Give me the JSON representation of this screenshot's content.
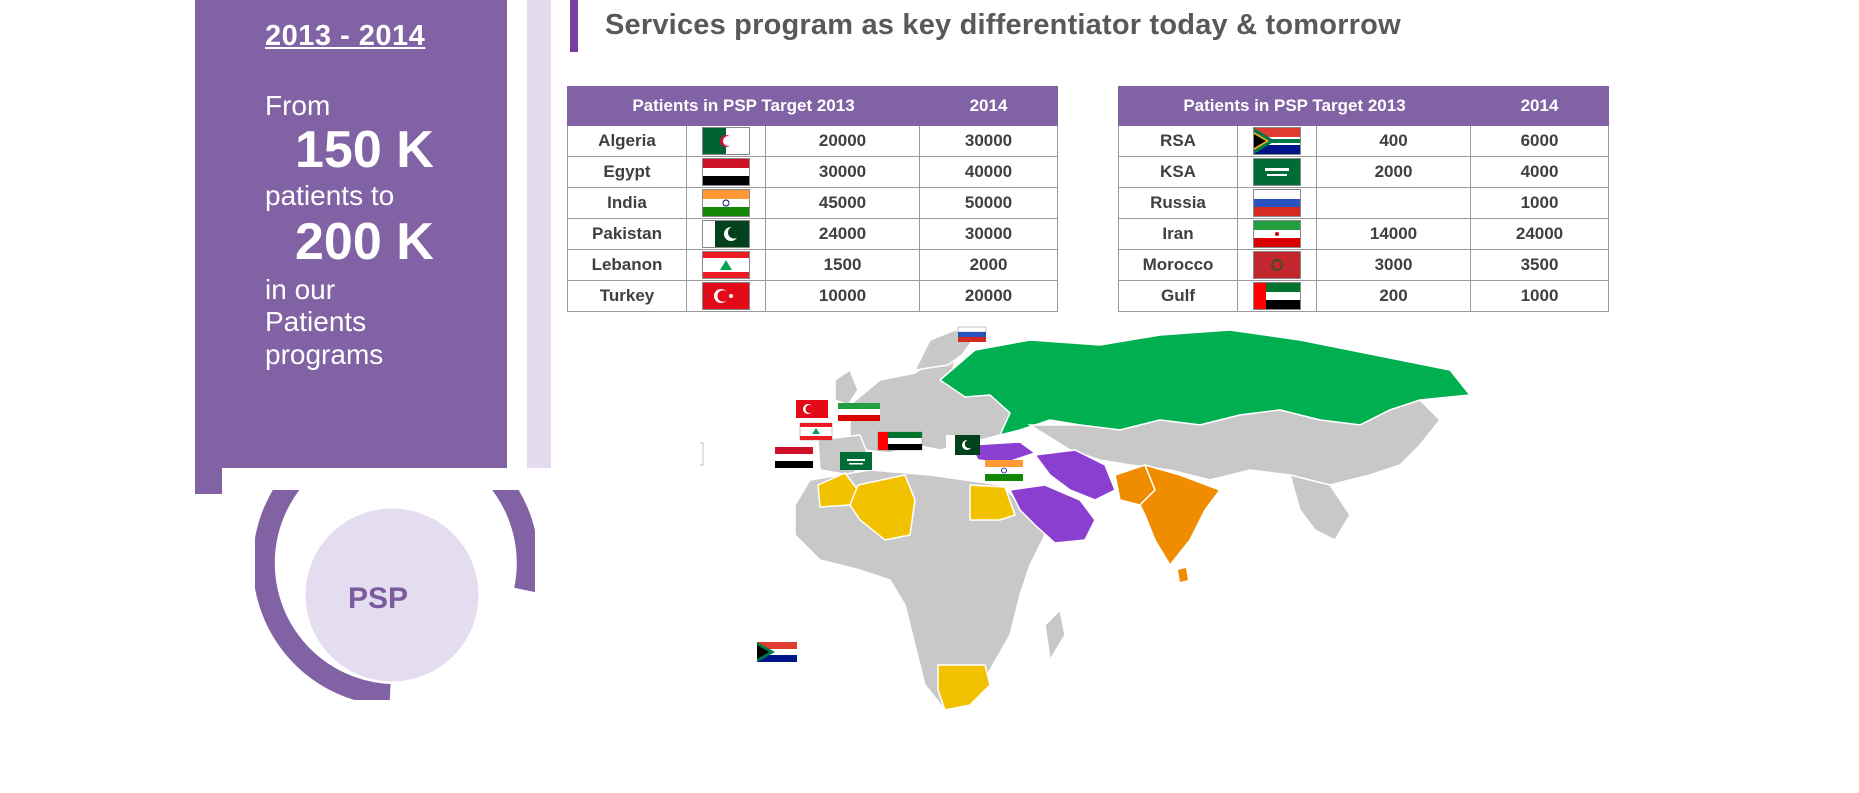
{
  "left_panel": {
    "period": "2013 - 2014",
    "line1": "From",
    "value1": "150 K",
    "line2": "patients to",
    "value2": "200 K",
    "line3": "in our",
    "line4": "Patients",
    "line5": "programs"
  },
  "title": "Services program as key differentiator today & tomorrow",
  "table1": {
    "headers": [
      "Patients in PSP  Target 2013",
      "2014"
    ],
    "rows": [
      {
        "country": "Algeria",
        "flag": "algeria-flag",
        "t2013": "20000",
        "t2014": "30000"
      },
      {
        "country": "Egypt",
        "flag": "egypt-flag",
        "t2013": "30000",
        "t2014": "40000"
      },
      {
        "country": "India",
        "flag": "india-flag",
        "t2013": "45000",
        "t2014": "50000"
      },
      {
        "country": "Pakistan",
        "flag": "pakistan-flag",
        "t2013": "24000",
        "t2014": "30000"
      },
      {
        "country": "Lebanon",
        "flag": "lebanon-flag",
        "t2013": "1500",
        "t2014": "2000"
      },
      {
        "country": "Turkey",
        "flag": "turkey-flag",
        "t2013": "10000",
        "t2014": "20000"
      }
    ]
  },
  "table2": {
    "headers": [
      "Patients in PSP  Target 2013",
      "2014"
    ],
    "rows": [
      {
        "country": "RSA",
        "flag": "south-africa-flag",
        "t2013": "400",
        "t2014": "6000"
      },
      {
        "country": "KSA",
        "flag": "saudi-arabia-flag",
        "t2013": "2000",
        "t2014": "4000"
      },
      {
        "country": "Russia",
        "flag": "russia-flag",
        "t2013": "",
        "t2014": "1000"
      },
      {
        "country": "Iran",
        "flag": "iran-flag",
        "t2013": "14000",
        "t2014": "24000"
      },
      {
        "country": "Morocco",
        "flag": "morocco-flag",
        "t2013": "3000",
        "t2014": "3500"
      },
      {
        "country": "Gulf",
        "flag": "uae-flag",
        "t2013": "200",
        "t2014": "1000"
      }
    ]
  },
  "psp_label": "PSP",
  "colors": {
    "panel_purple": "#8162a4",
    "highlight_green": "#00b050",
    "highlight_yellow": "#f2c200",
    "highlight_purple": "#8a3fd0",
    "highlight_orange": "#f08c00",
    "land_gray": "#c8c8c8"
  }
}
